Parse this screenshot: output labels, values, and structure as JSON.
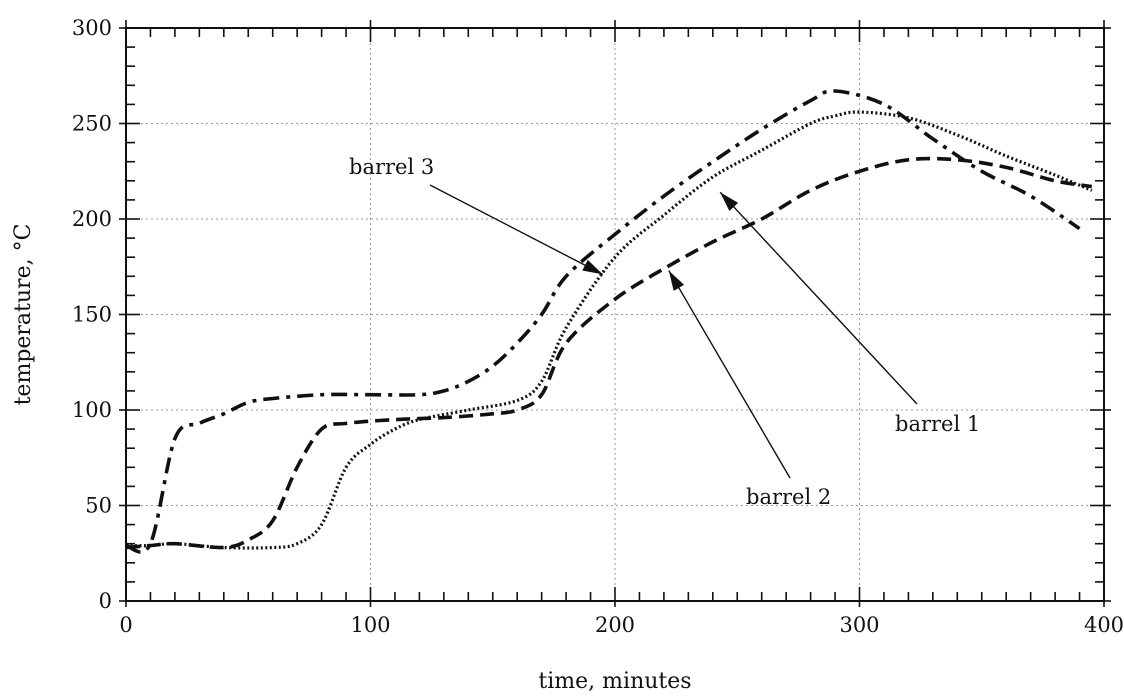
{
  "chart_data": {
    "type": "line",
    "title": "",
    "xlabel": "time, minutes",
    "ylabel": "temperature, °C",
    "xlim": [
      0,
      400
    ],
    "ylim": [
      0,
      300
    ],
    "xticks": [
      0,
      100,
      200,
      300,
      400
    ],
    "yticks": [
      0,
      50,
      100,
      150,
      200,
      250,
      300
    ],
    "x_minor_step": 10,
    "y_minor_step": 10,
    "grid": true,
    "legend": "none (series identified by arrow callouts)",
    "series": [
      {
        "name": "barrel 1",
        "style": "dotted",
        "x": [
          0,
          10,
          20,
          40,
          60,
          70,
          80,
          90,
          100,
          110,
          120,
          140,
          160,
          170,
          180,
          200,
          220,
          240,
          260,
          280,
          290,
          300,
          320,
          340,
          360,
          380,
          395
        ],
        "y": [
          29,
          29,
          30,
          28,
          28,
          30,
          40,
          70,
          82,
          90,
          95,
          100,
          105,
          115,
          143,
          180,
          202,
          222,
          236,
          250,
          254,
          256,
          253,
          244,
          233,
          223,
          215
        ]
      },
      {
        "name": "barrel 2",
        "style": "dashed",
        "x": [
          0,
          10,
          20,
          40,
          50,
          60,
          70,
          80,
          90,
          110,
          130,
          150,
          160,
          170,
          180,
          200,
          220,
          240,
          260,
          280,
          300,
          320,
          340,
          360,
          380,
          395
        ],
        "y": [
          28,
          29,
          30,
          28,
          32,
          42,
          70,
          90,
          93,
          95,
          96,
          98,
          100,
          108,
          135,
          158,
          174,
          188,
          200,
          215,
          225,
          231,
          231,
          227,
          220,
          217
        ]
      },
      {
        "name": "barrel 3",
        "style": "dash-dot",
        "x": [
          0,
          10,
          20,
          30,
          40,
          50,
          60,
          80,
          100,
          120,
          130,
          140,
          150,
          160,
          170,
          180,
          200,
          220,
          240,
          260,
          280,
          290,
          310,
          330,
          350,
          370,
          390
        ],
        "y": [
          29,
          30,
          85,
          93,
          98,
          104,
          106,
          108,
          108,
          108,
          110,
          115,
          123,
          135,
          150,
          170,
          192,
          212,
          230,
          247,
          262,
          267,
          260,
          242,
          225,
          212,
          195
        ]
      }
    ],
    "annotations": [
      {
        "text": "barrel 3",
        "points_to": {
          "x": 195,
          "y": 171
        }
      },
      {
        "text": "barrel 1",
        "points_to": {
          "x": 243,
          "y": 214
        }
      },
      {
        "text": "barrel 2",
        "points_to": {
          "x": 222,
          "y": 173
        }
      }
    ]
  }
}
